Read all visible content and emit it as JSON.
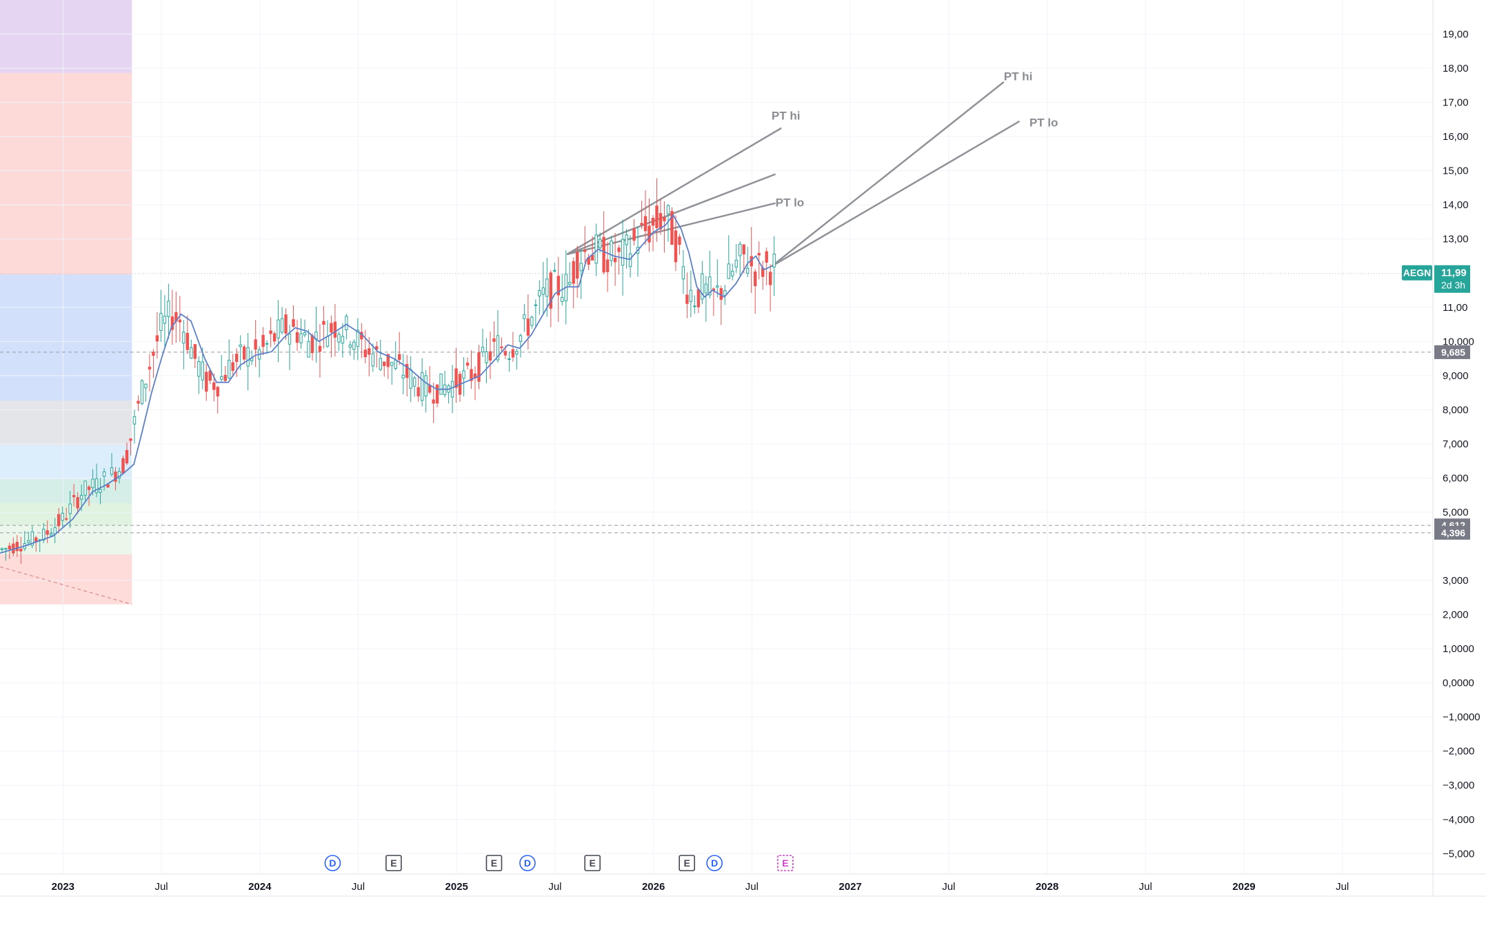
{
  "chart_data": {
    "type": "candlestick",
    "symbol": "AEGN",
    "last_price": "11,99",
    "countdown": "2d 3h",
    "y_range": [
      -5.6,
      20.0
    ],
    "x_range": [
      2022.68,
      2029.96
    ],
    "price_ticks": [
      {
        "value": 19,
        "label": "19,00"
      },
      {
        "value": 18,
        "label": "18,00"
      },
      {
        "value": 17,
        "label": "17,00"
      },
      {
        "value": 16,
        "label": "16,00"
      },
      {
        "value": 15,
        "label": "15,00"
      },
      {
        "value": 14,
        "label": "14,00"
      },
      {
        "value": 13,
        "label": "13,00"
      },
      {
        "value": 11,
        "label": "11,00"
      },
      {
        "value": 10,
        "label": "10,000"
      },
      {
        "value": 9,
        "label": "9,000"
      },
      {
        "value": 8,
        "label": "8,000"
      },
      {
        "value": 7,
        "label": "7,000"
      },
      {
        "value": 6,
        "label": "6,000"
      },
      {
        "value": 5,
        "label": "5,000"
      },
      {
        "value": 3,
        "label": "3,000"
      },
      {
        "value": 2,
        "label": "2,000"
      },
      {
        "value": 1,
        "label": "1,0000"
      },
      {
        "value": 0,
        "label": "0,0000"
      },
      {
        "value": -1,
        "label": "−1,0000"
      },
      {
        "value": -2,
        "label": "−2,000"
      },
      {
        "value": -3,
        "label": "−3,000"
      },
      {
        "value": -4,
        "label": "−4,000"
      },
      {
        "value": -5,
        "label": "−5,000"
      }
    ],
    "time_ticks": [
      {
        "t": 2023.0,
        "label": "2023",
        "bold": true
      },
      {
        "t": 2023.5,
        "label": "Jul",
        "bold": false
      },
      {
        "t": 2024.0,
        "label": "2024",
        "bold": true
      },
      {
        "t": 2024.5,
        "label": "Jul",
        "bold": false
      },
      {
        "t": 2025.0,
        "label": "2025",
        "bold": true
      },
      {
        "t": 2025.5,
        "label": "Jul",
        "bold": false
      },
      {
        "t": 2026.0,
        "label": "2026",
        "bold": true
      },
      {
        "t": 2026.5,
        "label": "Jul",
        "bold": false
      },
      {
        "t": 2027.0,
        "label": "2027",
        "bold": true
      },
      {
        "t": 2027.5,
        "label": "Jul",
        "bold": false
      },
      {
        "t": 2028.0,
        "label": "2028",
        "bold": true
      },
      {
        "t": 2028.5,
        "label": "Jul",
        "bold": false
      },
      {
        "t": 2029.0,
        "label": "2029",
        "bold": true
      },
      {
        "t": 2029.5,
        "label": "Jul",
        "bold": false
      }
    ],
    "price_markers": [
      {
        "value": 9.685,
        "label": "9,685"
      },
      {
        "value": 4.612,
        "label": "4,612"
      },
      {
        "value": 4.396,
        "label": "4,396"
      }
    ],
    "dashed_levels": [
      9.685,
      4.612,
      4.396
    ],
    "dotted_level": 11.99,
    "zones": [
      {
        "from": 17.85,
        "to": 20.0,
        "color": "#e6d4f3"
      },
      {
        "from": 11.95,
        "to": 17.85,
        "color": "#fdd9d7"
      },
      {
        "from": 8.25,
        "to": 11.95,
        "color": "#d3e0fc"
      },
      {
        "from": 6.95,
        "to": 8.25,
        "color": "#e4e5e8"
      },
      {
        "from": 5.95,
        "to": 6.95,
        "color": "#dcedfc"
      },
      {
        "from": 5.25,
        "to": 5.95,
        "color": "#d5eee8"
      },
      {
        "from": 4.6,
        "to": 5.25,
        "color": "#e0f3e0"
      },
      {
        "from": 3.75,
        "to": 4.6,
        "color": "#ecf7ec"
      },
      {
        "from": 2.3,
        "to": 3.75,
        "color": "#fddcda"
      }
    ],
    "zone_end_t": 2023.35,
    "ma_line": [
      [
        2022.68,
        3.8
      ],
      [
        2022.8,
        4.0
      ],
      [
        2022.95,
        4.3
      ],
      [
        2023.05,
        4.8
      ],
      [
        2023.15,
        5.6
      ],
      [
        2023.22,
        5.8
      ],
      [
        2023.3,
        6.1
      ],
      [
        2023.36,
        6.4
      ],
      [
        2023.4,
        7.3
      ],
      [
        2023.45,
        8.5
      ],
      [
        2023.5,
        9.5
      ],
      [
        2023.55,
        10.4
      ],
      [
        2023.6,
        10.8
      ],
      [
        2023.65,
        10.6
      ],
      [
        2023.72,
        9.5
      ],
      [
        2023.78,
        8.8
      ],
      [
        2023.84,
        8.8
      ],
      [
        2023.9,
        9.3
      ],
      [
        2023.98,
        9.6
      ],
      [
        2024.06,
        9.7
      ],
      [
        2024.12,
        10.1
      ],
      [
        2024.18,
        10.4
      ],
      [
        2024.24,
        10.3
      ],
      [
        2024.3,
        10.0
      ],
      [
        2024.36,
        10.2
      ],
      [
        2024.44,
        10.5
      ],
      [
        2024.52,
        10.2
      ],
      [
        2024.6,
        9.7
      ],
      [
        2024.68,
        9.5
      ],
      [
        2024.76,
        9.2
      ],
      [
        2024.84,
        8.8
      ],
      [
        2024.9,
        8.6
      ],
      [
        2024.96,
        8.6
      ],
      [
        2025.04,
        8.8
      ],
      [
        2025.12,
        9.0
      ],
      [
        2025.2,
        9.5
      ],
      [
        2025.26,
        9.9
      ],
      [
        2025.32,
        9.8
      ],
      [
        2025.38,
        10.2
      ],
      [
        2025.44,
        10.8
      ],
      [
        2025.5,
        11.4
      ],
      [
        2025.56,
        11.6
      ],
      [
        2025.62,
        11.6
      ],
      [
        2025.66,
        12.4
      ],
      [
        2025.72,
        12.7
      ],
      [
        2025.8,
        12.5
      ],
      [
        2025.88,
        12.4
      ],
      [
        2025.94,
        12.8
      ],
      [
        2026.0,
        13.2
      ],
      [
        2026.06,
        13.4
      ],
      [
        2026.1,
        13.7
      ],
      [
        2026.14,
        13.3
      ],
      [
        2026.18,
        12.6
      ],
      [
        2026.22,
        11.6
      ],
      [
        2026.26,
        11.3
      ],
      [
        2026.3,
        11.5
      ],
      [
        2026.36,
        11.3
      ],
      [
        2026.42,
        11.7
      ],
      [
        2026.48,
        12.3
      ],
      [
        2026.52,
        12.5
      ],
      [
        2026.56,
        12.1
      ],
      [
        2026.6,
        12.2
      ]
    ],
    "candles": [],
    "trendlines": [
      {
        "t1": 2025.56,
        "p1": 12.55,
        "t2": 2026.65,
        "p2": 16.25
      },
      {
        "t1": 2025.56,
        "p1": 12.55,
        "t2": 2026.62,
        "p2": 14.9
      },
      {
        "t1": 2025.56,
        "p1": 12.55,
        "t2": 2026.62,
        "p2": 14.05
      },
      {
        "t1": 2026.6,
        "p1": 12.2,
        "t2": 2027.78,
        "p2": 17.6
      },
      {
        "t1": 2026.6,
        "p1": 12.2,
        "t2": 2027.86,
        "p2": 16.45
      },
      {
        "t1": 2022.68,
        "p1": 3.4,
        "t2": 2023.35,
        "p2": 2.3
      }
    ],
    "annotations": [
      {
        "label": "PT hi",
        "t": 2026.6,
        "p": 16.5
      },
      {
        "label": "PT lo",
        "t": 2026.62,
        "p": 13.95
      },
      {
        "label": "PT hi",
        "t": 2027.78,
        "p": 17.65
      },
      {
        "label": "PT lo",
        "t": 2027.91,
        "p": 16.3
      }
    ],
    "events": [
      {
        "t": 2024.37,
        "label": "D",
        "kind": "dividend"
      },
      {
        "t": 2024.68,
        "label": "E",
        "kind": "earnings"
      },
      {
        "t": 2025.19,
        "label": "E",
        "kind": "earnings"
      },
      {
        "t": 2025.36,
        "label": "D",
        "kind": "dividend"
      },
      {
        "t": 2025.69,
        "label": "E",
        "kind": "earnings"
      },
      {
        "t": 2026.17,
        "label": "E",
        "kind": "earnings"
      },
      {
        "t": 2026.31,
        "label": "D",
        "kind": "dividend"
      },
      {
        "t": 2026.67,
        "label": "E",
        "kind": "upcoming-earnings"
      }
    ],
    "colors": {
      "up": "#26a69a",
      "down": "#ef5350",
      "ma": "#5b7fc9",
      "trendline": "#8f9296",
      "annotation": "#8a8d92",
      "grid": "#f0f3fa",
      "axis_text": "#131722",
      "symbol_tag": "#26a69a",
      "marker_tag": "#787b86",
      "dividend": "#2962ff",
      "earnings": "#434651",
      "upcoming": "#d040d0"
    }
  }
}
